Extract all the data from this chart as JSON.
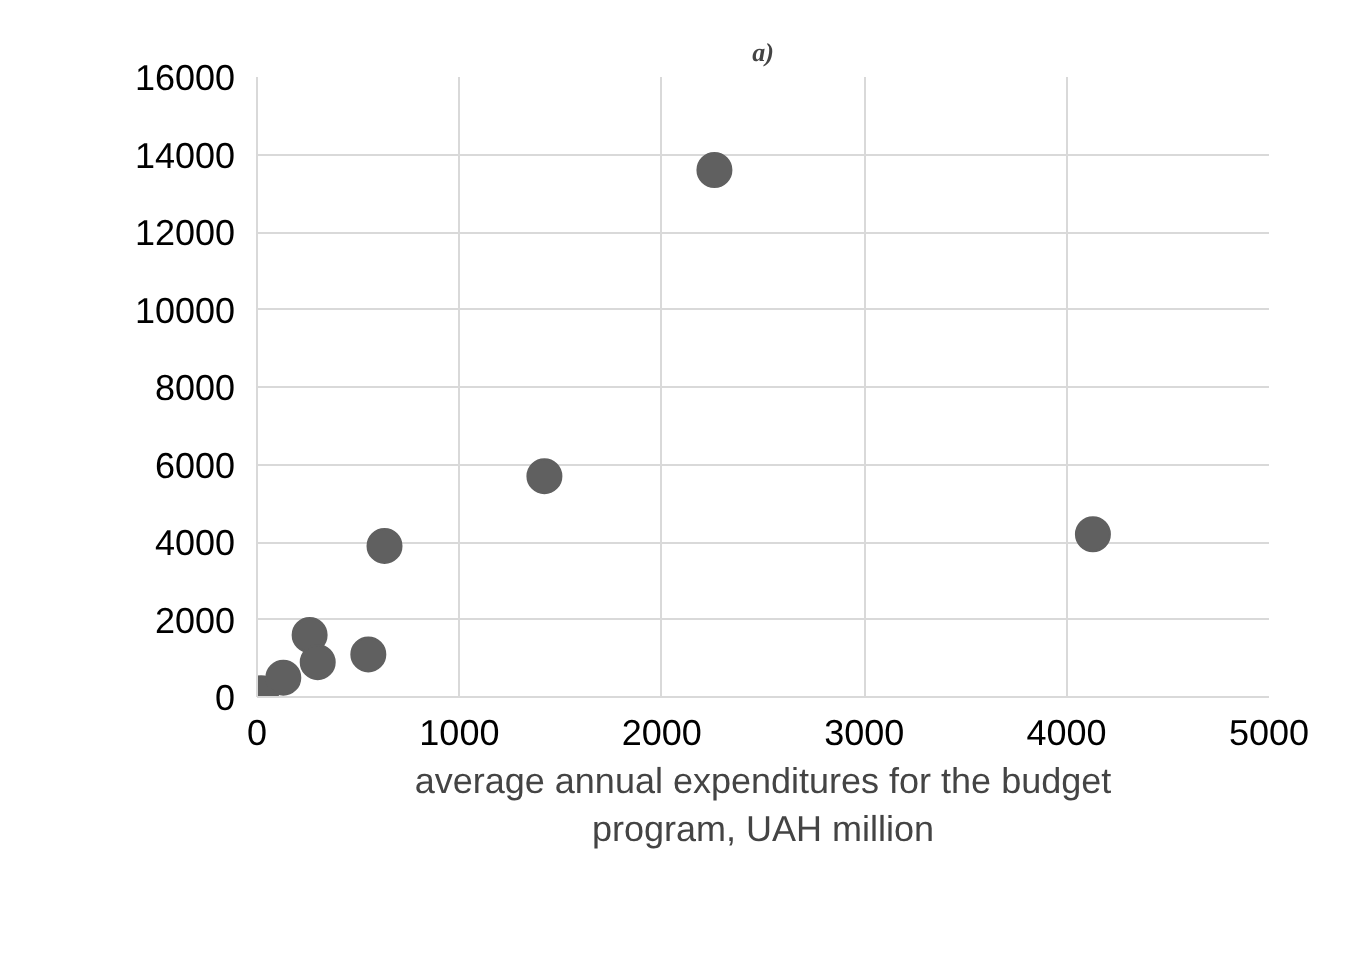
{
  "chart_data": {
    "type": "scatter",
    "title": "a)",
    "xlabel": "average annual expenditures for the budget\nprogram, UAH million",
    "x": [
      20,
      130,
      260,
      300,
      550,
      630,
      1420,
      2260,
      4130
    ],
    "values": [
      100,
      500,
      1600,
      900,
      1100,
      3900,
      5700,
      13600,
      4200
    ],
    "color": "#606060",
    "marker": "circle",
    "grid": true,
    "xlim": [
      0,
      5000
    ],
    "xticks": [
      0,
      1000,
      2000,
      3000,
      4000,
      5000
    ],
    "ylim": [
      0,
      16000
    ],
    "yticks": [
      0,
      2000,
      4000,
      6000,
      8000,
      10000,
      12000,
      14000,
      16000
    ]
  }
}
